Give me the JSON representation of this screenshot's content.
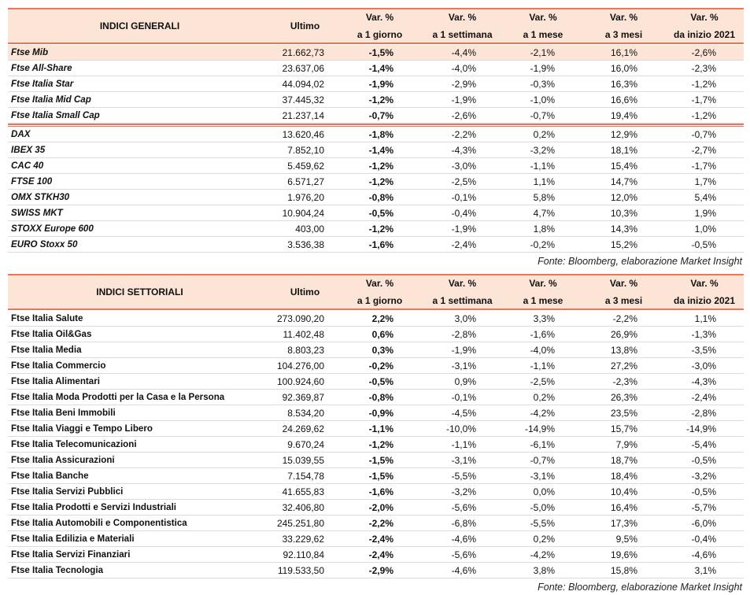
{
  "tables": [
    {
      "header": [
        "INDICI GENERALI",
        "Ultimo",
        [
          "Var. %",
          "a 1 giorno"
        ],
        [
          "Var. %",
          "a 1 settimana"
        ],
        [
          "Var. %",
          "a 1 mese"
        ],
        [
          "Var. %",
          "a 3 mesi"
        ],
        [
          "Var. %",
          "da inizio 2021"
        ]
      ],
      "groups": [
        [
          [
            "Ftse Mib",
            "21.662,73",
            "-1,5%",
            "-4,4%",
            "-2,1%",
            "16,1%",
            "-2,6%"
          ],
          [
            "Ftse All-Share",
            "23.637,06",
            "-1,4%",
            "-4,0%",
            "-1,9%",
            "16,0%",
            "-2,3%"
          ],
          [
            "Ftse Italia Star",
            "44.094,02",
            "-1,9%",
            "-2,9%",
            "-0,3%",
            "16,3%",
            "-1,2%"
          ],
          [
            "Ftse Italia Mid Cap",
            "37.445,32",
            "-1,2%",
            "-1,9%",
            "-1,0%",
            "16,6%",
            "-1,7%"
          ],
          [
            "Ftse Italia Small Cap",
            "21.237,14",
            "-0,7%",
            "-2,6%",
            "-0,7%",
            "19,4%",
            "-1,2%"
          ]
        ],
        [
          [
            "DAX",
            "13.620,46",
            "-1,8%",
            "-2,2%",
            "0,2%",
            "12,9%",
            "-0,7%"
          ],
          [
            "IBEX 35",
            "7.852,10",
            "-1,4%",
            "-4,3%",
            "-3,2%",
            "18,1%",
            "-2,7%"
          ],
          [
            "CAC 40",
            "5.459,62",
            "-1,2%",
            "-3,0%",
            "-1,1%",
            "15,4%",
            "-1,7%"
          ],
          [
            "FTSE 100",
            "6.571,27",
            "-1,2%",
            "-2,5%",
            "1,1%",
            "14,7%",
            "1,7%"
          ],
          [
            "OMX STKH30",
            "1.976,20",
            "-0,8%",
            "-0,1%",
            "5,8%",
            "12,0%",
            "5,4%"
          ],
          [
            "SWISS MKT",
            "10.904,24",
            "-0,5%",
            "-0,4%",
            "4,7%",
            "10,3%",
            "1,9%"
          ],
          [
            "STOXX Europe 600",
            "403,00",
            "-1,2%",
            "-1,9%",
            "1,8%",
            "14,3%",
            "1,0%"
          ],
          [
            "EURO Stoxx 50",
            "3.536,38",
            "-1,6%",
            "-2,4%",
            "-0,2%",
            "15,2%",
            "-0,5%"
          ]
        ]
      ],
      "source": "Fonte: Bloomberg, elaborazione Market Insight"
    },
    {
      "header": [
        "INDICI SETTORIALI",
        "Ultimo",
        [
          "Var. %",
          "a 1 giorno"
        ],
        [
          "Var. %",
          "a 1 settimana"
        ],
        [
          "Var. %",
          "a 1 mese"
        ],
        [
          "Var. %",
          "a 3 mesi"
        ],
        [
          "Var. %",
          "da inizio 2021"
        ]
      ],
      "groups": [
        [
          [
            "Ftse Italia Salute",
            "273.090,20",
            "2,2%",
            "3,0%",
            "3,3%",
            "-2,2%",
            "1,1%"
          ],
          [
            "Ftse Italia Oil&Gas",
            "11.402,48",
            "0,6%",
            "-2,8%",
            "-1,6%",
            "26,9%",
            "-1,3%"
          ],
          [
            "Ftse Italia Media",
            "8.803,23",
            "0,3%",
            "-1,9%",
            "-4,0%",
            "13,8%",
            "-3,5%"
          ],
          [
            "Ftse Italia Commercio",
            "104.276,00",
            "-0,2%",
            "-3,1%",
            "-1,1%",
            "27,2%",
            "-3,0%"
          ],
          [
            "Ftse Italia Alimentari",
            "100.924,60",
            "-0,5%",
            "0,9%",
            "-2,5%",
            "-2,3%",
            "-4,3%"
          ],
          [
            "Ftse Italia Moda Prodotti per la Casa e la Persona",
            "92.369,87",
            "-0,8%",
            "-0,1%",
            "0,2%",
            "26,3%",
            "-2,4%"
          ],
          [
            "Ftse Italia Beni Immobili",
            "8.534,20",
            "-0,9%",
            "-4,5%",
            "-4,2%",
            "23,5%",
            "-2,8%"
          ],
          [
            "Ftse Italia Viaggi e Tempo Libero",
            "24.269,62",
            "-1,1%",
            "-10,0%",
            "-14,9%",
            "15,7%",
            "-14,9%"
          ],
          [
            "Ftse Italia Telecomunicazioni",
            "9.670,24",
            "-1,2%",
            "-1,1%",
            "-6,1%",
            "7,9%",
            "-5,4%"
          ],
          [
            "Ftse Italia Assicurazioni",
            "15.039,55",
            "-1,5%",
            "-3,1%",
            "-0,7%",
            "18,7%",
            "-0,5%"
          ],
          [
            "Ftse Italia Banche",
            "7.154,78",
            "-1,5%",
            "-5,5%",
            "-3,1%",
            "18,4%",
            "-3,2%"
          ],
          [
            "Ftse Italia Servizi Pubblici",
            "41.655,83",
            "-1,6%",
            "-3,2%",
            "0,0%",
            "10,4%",
            "-0,5%"
          ],
          [
            "Ftse Italia Prodotti e Servizi Industriali",
            "32.406,80",
            "-2,0%",
            "-5,6%",
            "-5,0%",
            "16,4%",
            "-5,7%"
          ],
          [
            "Ftse Italia Automobili e Componentistica",
            "245.251,80",
            "-2,2%",
            "-6,8%",
            "-5,5%",
            "17,3%",
            "-6,0%"
          ],
          [
            "Ftse Italia Edilizia e Materiali",
            "33.229,62",
            "-2,4%",
            "-4,6%",
            "0,2%",
            "9,5%",
            "-0,4%"
          ],
          [
            "Ftse Italia Servizi Finanziari",
            "92.110,84",
            "-2,4%",
            "-5,6%",
            "-4,2%",
            "19,6%",
            "-4,6%"
          ],
          [
            "Ftse Italia Tecnologia",
            "119.533,50",
            "-2,9%",
            "-4,6%",
            "3,8%",
            "15,8%",
            "3,1%"
          ]
        ]
      ],
      "source": "Fonte: Bloomberg, elaborazione Market Insight"
    }
  ]
}
